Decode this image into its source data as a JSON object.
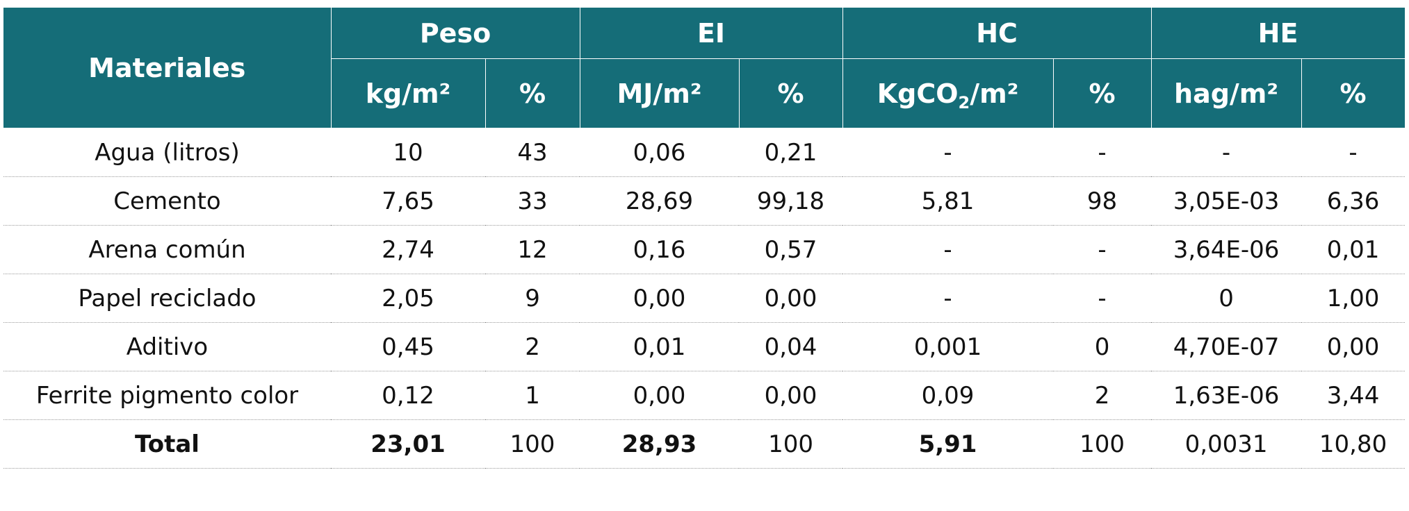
{
  "table": {
    "header": {
      "corner": "Materiales",
      "groups": [
        "Peso",
        "EI",
        "HC",
        "HE"
      ],
      "units": [
        "kg/m²",
        "%",
        "MJ/m²",
        "%",
        [
          "KgCO",
          "2",
          "/m²"
        ],
        "%",
        "hag/m²",
        "%"
      ]
    },
    "rows": [
      [
        "Agua (litros)",
        "10",
        "43",
        "0,06",
        "0,21",
        "-",
        "-",
        "-",
        "-"
      ],
      [
        "Cemento",
        "7,65",
        "33",
        "28,69",
        "99,18",
        "5,81",
        "98",
        "3,05E-03",
        "6,36"
      ],
      [
        "Arena común",
        "2,74",
        "12",
        "0,16",
        "0,57",
        "-",
        "-",
        "3,64E-06",
        "0,01"
      ],
      [
        "Papel reciclado",
        "2,05",
        "9",
        "0,00",
        "0,00",
        "-",
        "-",
        "0",
        "1,00"
      ],
      [
        "Aditivo",
        "0,45",
        "2",
        "0,01",
        "0,04",
        "0,001",
        "0",
        "4,70E-07",
        "0,00"
      ],
      [
        "Ferrite pigmento color",
        "0,12",
        "1",
        "0,00",
        "0,00",
        "0,09",
        "2",
        "1,63E-06",
        "3,44"
      ],
      [
        "Total",
        "23,01",
        "100",
        "28,93",
        "100",
        "5,91",
        "100",
        "0,0031",
        "10,80"
      ]
    ]
  }
}
